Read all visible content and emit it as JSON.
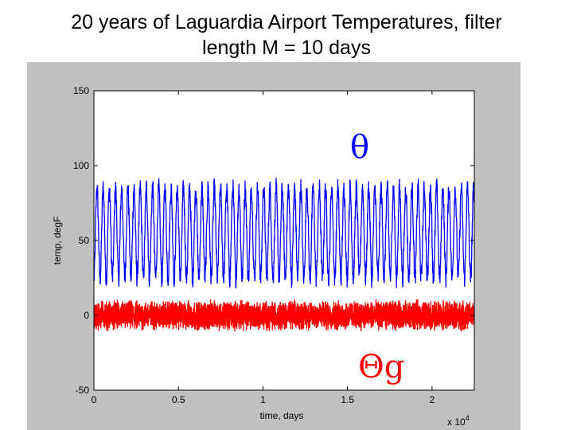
{
  "title_line1": "20 years of Laguardia Airport Temperatures, filter",
  "title_line2": "length M = 10 days",
  "chart_data": {
    "type": "line",
    "xlabel": "time, days",
    "ylabel": "temp, degF",
    "x_multiplier_label": "x 10",
    "x_multiplier_exp": "4",
    "xlim": [
      0,
      22500
    ],
    "ylim": [
      -50,
      150
    ],
    "xticks": [
      0,
      5000,
      10000,
      15000,
      20000
    ],
    "xtick_labels": [
      "0",
      "0.5",
      "1",
      "1.5",
      "2"
    ],
    "yticks": [
      150,
      100,
      50,
      0,
      -50
    ],
    "ytick_labels": [
      "150",
      "100",
      "50",
      "0",
      "-50"
    ],
    "grid": false,
    "series": [
      {
        "name": "θ",
        "color": "#0000ff",
        "mean": 55,
        "seasonal_amplitude": 30,
        "period_days": 365.25,
        "noise_amplitude": 7,
        "range_approx": [
          18,
          96
        ]
      },
      {
        "name": "Θg",
        "color": "#ff0000",
        "mean": 0,
        "noise_amplitude": 8,
        "range_approx": [
          -23,
          18
        ]
      }
    ]
  }
}
